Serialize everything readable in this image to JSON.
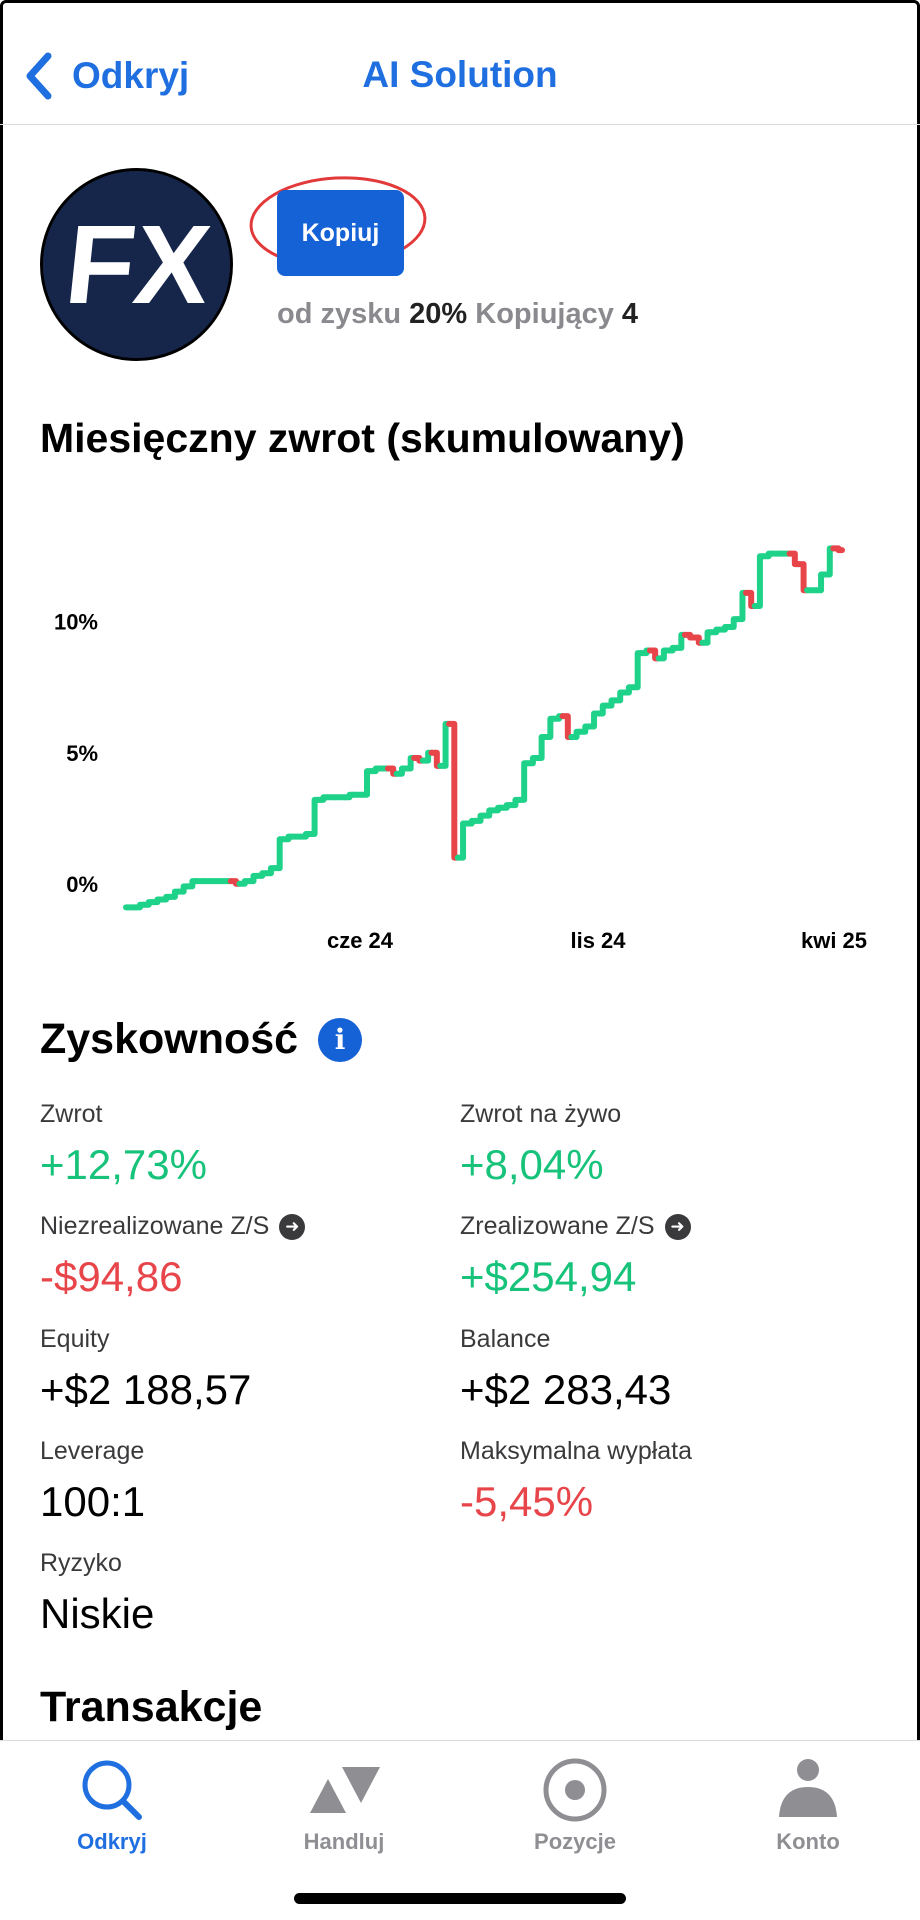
{
  "nav": {
    "back_label": "Odkryj",
    "title": "AI Solution"
  },
  "profile": {
    "avatar_text": "FX",
    "copy_label": "Kopiuj",
    "profit_label": "od zysku",
    "profit_value": "20%",
    "copiers_label": "Kopiujący",
    "copiers_value": "4"
  },
  "chart_title": "Miesięczny zwrot (skumulowany)",
  "chart_data": {
    "type": "line",
    "title": "Miesięczny zwrot (skumulowany)",
    "xlabel": "",
    "ylabel": "",
    "x_ticks": [
      "cze 24",
      "lis 24",
      "kwi 25"
    ],
    "y_ticks": [
      "0%",
      "5%",
      "10%"
    ],
    "ylim": [
      -1,
      13.5
    ],
    "grid": false,
    "colors": {
      "up": "#1fd28a",
      "down": "#e8454a"
    },
    "series": [
      {
        "values": [
          -0.9,
          -0.9,
          -0.8,
          -0.7,
          -0.6,
          -0.5,
          -0.3,
          -0.1,
          0.1,
          0.1,
          0.1,
          0.1,
          0.1,
          0.0,
          0.1,
          0.3,
          0.4,
          0.6,
          1.7,
          1.8,
          1.8,
          1.9,
          3.2,
          3.3,
          3.3,
          3.3,
          3.4,
          3.4,
          4.3,
          4.4,
          4.4,
          4.2,
          4.4,
          4.8,
          4.7,
          5.0,
          4.5,
          6.1,
          1.0,
          2.3,
          2.4,
          2.6,
          2.8,
          2.9,
          3.0,
          3.2,
          4.6,
          4.8,
          5.6,
          6.3,
          6.4,
          5.6,
          5.8,
          6.0,
          6.5,
          6.8,
          7.0,
          7.3,
          7.5,
          8.8,
          8.9,
          8.6,
          8.9,
          9.0,
          9.5,
          9.4,
          9.2,
          9.6,
          9.7,
          9.8,
          10.1,
          11.1,
          10.6,
          12.5,
          12.6,
          12.6,
          12.6,
          12.2,
          11.2,
          11.2,
          11.8,
          12.8,
          12.73
        ]
      }
    ]
  },
  "profitability": {
    "title": "Zyskowność",
    "metrics": [
      {
        "label": "Zwrot",
        "value": "+12,73%"
      },
      {
        "label": "Zwrot na żywo",
        "value": "+8,04%"
      },
      {
        "label": "Niezrealizowane Z/S",
        "value": "-$94,86"
      },
      {
        "label": "Zrealizowane Z/S",
        "value": "+$254,94"
      },
      {
        "label": "Equity",
        "value": "+$2 188,57"
      },
      {
        "label": "Balance",
        "value": "+$2 283,43"
      },
      {
        "label": "Leverage",
        "value": "100:1"
      },
      {
        "label": "Maksymalna wypłata",
        "value": "-5,45%"
      },
      {
        "label": "Ryzyko",
        "value": "Niskie"
      }
    ],
    "colors": {
      "positive": "#17c37b",
      "negative": "#e8454a"
    }
  },
  "transactions_title": "Transakcje",
  "tabs": [
    {
      "label": "Odkryj",
      "icon": "search-icon",
      "active": true
    },
    {
      "label": "Handluj",
      "icon": "trade-icon",
      "active": false
    },
    {
      "label": "Pozycje",
      "icon": "positions-icon",
      "active": false
    },
    {
      "label": "Konto",
      "icon": "account-icon",
      "active": false
    }
  ]
}
